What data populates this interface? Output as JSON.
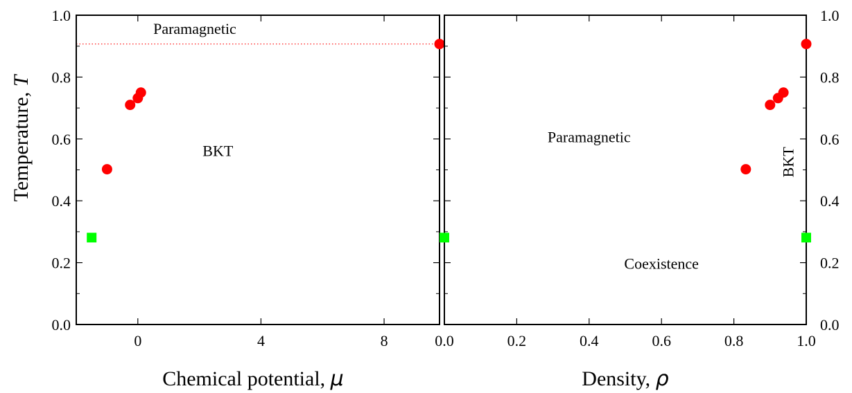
{
  "chart_data": [
    {
      "type": "scatter",
      "panel": "left",
      "xlabel": "Chemical potential, ",
      "xlabel_symbol": "μ",
      "ylabel": "Temperature, ",
      "ylabel_symbol": "T",
      "xlim": [
        -2,
        9.8
      ],
      "ylim": [
        0.0,
        1.0
      ],
      "xticks": [
        0,
        4,
        8
      ],
      "xtick_labels": [
        "0",
        "4",
        "8"
      ],
      "yticks": [
        0.0,
        0.2,
        0.4,
        0.6,
        0.8,
        1.0
      ],
      "ytick_labels": [
        "0.0",
        "0.2",
        "0.4",
        "0.6",
        "0.8",
        "1.0"
      ],
      "grid": false,
      "series": [
        {
          "marker": "circle",
          "color": "#ff0000",
          "points": [
            [
              -1.0,
              0.502
            ],
            [
              -0.25,
              0.71
            ],
            [
              0.0,
              0.732
            ],
            [
              0.1,
              0.75
            ],
            [
              9.8,
              0.907
            ]
          ]
        },
        {
          "marker": "square",
          "color": "#00ff00",
          "points": [
            [
              -1.5,
              0.281
            ]
          ]
        }
      ],
      "reference_line": {
        "y": 0.907,
        "style": "dotted",
        "color": "#ff0000"
      },
      "annotations": [
        {
          "text": "Paramagnetic",
          "x": 1.85,
          "y": 0.94
        },
        {
          "text": "BKT",
          "x": 2.6,
          "y": 0.545
        }
      ]
    },
    {
      "type": "scatter",
      "panel": "right",
      "xlabel": "Density, ",
      "xlabel_symbol": "ρ",
      "xlim": [
        0.0,
        1.0
      ],
      "ylim": [
        0.0,
        1.0
      ],
      "xticks": [
        0.0,
        0.2,
        0.4,
        0.6,
        0.8,
        1.0
      ],
      "xtick_labels": [
        "0.0",
        "0.2",
        "0.4",
        "0.6",
        "0.8",
        "1.0"
      ],
      "yticks": [
        0.0,
        0.2,
        0.4,
        0.6,
        0.8,
        1.0
      ],
      "ytick_labels": [
        "0.0",
        "0.2",
        "0.4",
        "0.6",
        "0.8",
        "1.0"
      ],
      "ytick_side": "right",
      "grid": false,
      "series": [
        {
          "marker": "circle",
          "color": "#ff0000",
          "points": [
            [
              0.833,
              0.502
            ],
            [
              0.9,
              0.71
            ],
            [
              0.922,
              0.732
            ],
            [
              0.937,
              0.75
            ],
            [
              1.0,
              0.907
            ]
          ]
        },
        {
          "marker": "square",
          "color": "#00ff00",
          "points": [
            [
              0.0,
              0.281
            ],
            [
              1.0,
              0.281
            ]
          ]
        }
      ],
      "annotations": [
        {
          "text": "Paramagnetic",
          "x": 0.4,
          "y": 0.59
        },
        {
          "text": "Coexistence",
          "x": 0.6,
          "y": 0.18
        },
        {
          "text": "BKT",
          "x": 0.965,
          "y": 0.525,
          "rotate": -90
        }
      ]
    }
  ]
}
